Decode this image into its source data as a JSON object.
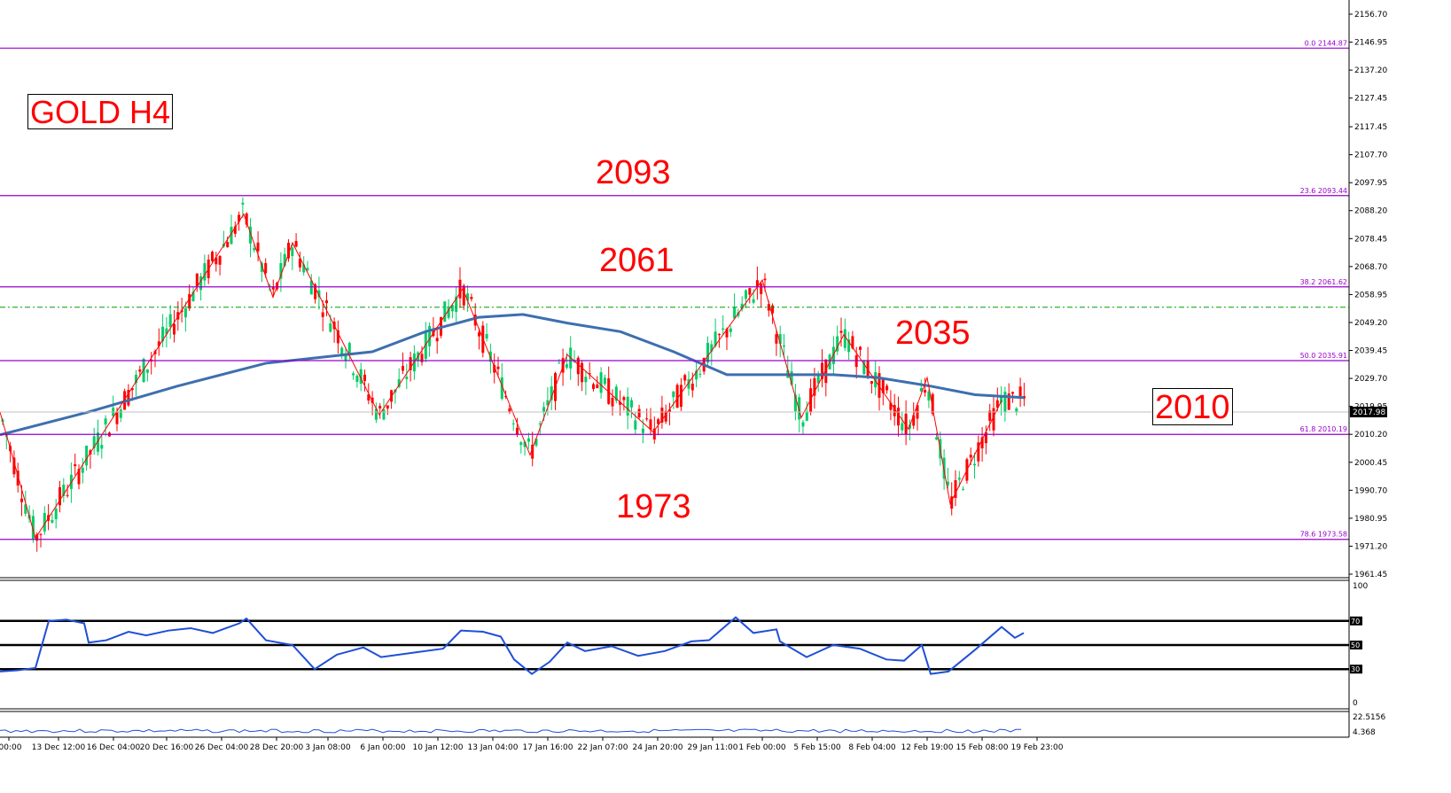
{
  "symbol_label": "GOLD H4",
  "annotations": [
    {
      "id": "2093",
      "text": "2093"
    },
    {
      "id": "2061",
      "text": "2061"
    },
    {
      "id": "2035",
      "text": "2035"
    },
    {
      "id": "2010",
      "text": "2010"
    },
    {
      "id": "1973",
      "text": "1973"
    }
  ],
  "current_price": "2017.98",
  "colors": {
    "bull": "#00cc66",
    "bear": "#ff0000",
    "ma": "#3d6fb0",
    "fib": "#9900cc",
    "annotation": "#ff0000",
    "rsi": "#1f4fd8",
    "zigzag": "#ff0000",
    "dashed_level": "#00a000",
    "price_tag_bg": "#000000"
  },
  "chart_data": {
    "type": "line",
    "title": "GOLD H4",
    "series_types": [
      "candlestick",
      "moving-average",
      "zigzag",
      "rsi",
      "volatility"
    ],
    "ylim": [
      1961.45,
      2158
    ],
    "price_axis_ticks": [
      "2156.70",
      "2146.95",
      "2137.20",
      "2127.45",
      "2117.45",
      "2107.70",
      "2097.95",
      "2088.20",
      "2078.45",
      "2068.70",
      "2058.95",
      "2049.20",
      "2039.45",
      "2029.70",
      "2019.95",
      "2010.20",
      "2000.45",
      "1990.70",
      "1980.95",
      "1971.20",
      "1961.45"
    ],
    "time_ticks": [
      ":00:00",
      "13 Dec 12:00",
      "16 Dec 04:00",
      "20 Dec 16:00",
      "26 Dec 04:00",
      "28 Dec 20:00",
      "3 Jan 08:00",
      "6 Jan 00:00",
      "10 Jan 12:00",
      "13 Jan 04:00",
      "17 Jan 16:00",
      "22 Jan 07:00",
      "24 Jan 20:00",
      "29 Jan 11:00",
      "1 Feb 00:00",
      "5 Feb 15:00",
      "8 Feb 04:00",
      "12 Feb 19:00",
      "15 Feb 08:00",
      "19 Feb 23:00"
    ],
    "fib_levels": [
      {
        "label": "0.0 2144.87",
        "price": 2144.87
      },
      {
        "label": "23.6 2093.44",
        "price": 2093.44
      },
      {
        "label": "38.2 2061.62",
        "price": 2061.62
      },
      {
        "label": "50.0 2035.91",
        "price": 2035.91
      },
      {
        "label": "61.8 2010.19",
        "price": 2010.19
      },
      {
        "label": "78.6 1973.58",
        "price": 1973.58
      }
    ],
    "dashed_level": 2054.5,
    "current_price_value": 2017.98,
    "zigzag_points": [
      [
        0,
        2018
      ],
      [
        40,
        1974
      ],
      [
        275,
        2087
      ],
      [
        308,
        2058
      ],
      [
        330,
        2077
      ],
      [
        428,
        2017
      ],
      [
        522,
        2061
      ],
      [
        598,
        2003
      ],
      [
        640,
        2038
      ],
      [
        737,
        2011
      ],
      [
        860,
        2064
      ],
      [
        904,
        2016
      ],
      [
        952,
        2045
      ],
      [
        1025,
        2012
      ],
      [
        1046,
        2030
      ],
      [
        1072,
        1986
      ],
      [
        1130,
        2022
      ]
    ],
    "ma_points": [
      [
        0,
        2010
      ],
      [
        100,
        2018
      ],
      [
        200,
        2027
      ],
      [
        300,
        2035
      ],
      [
        360,
        2037
      ],
      [
        420,
        2039
      ],
      [
        480,
        2046
      ],
      [
        540,
        2051
      ],
      [
        590,
        2052
      ],
      [
        640,
        2049
      ],
      [
        700,
        2046
      ],
      [
        760,
        2039
      ],
      [
        820,
        2031
      ],
      [
        880,
        2031
      ],
      [
        940,
        2031
      ],
      [
        990,
        2030
      ],
      [
        1050,
        2027
      ],
      [
        1100,
        2024
      ],
      [
        1155,
        2023
      ]
    ],
    "rsi": {
      "levels": [
        70,
        50,
        30
      ],
      "axis_ticks": [
        "100",
        "0"
      ],
      "points": [
        [
          0,
          28
        ],
        [
          20,
          29
        ],
        [
          40,
          31
        ],
        [
          55,
          70
        ],
        [
          75,
          71
        ],
        [
          95,
          68
        ],
        [
          100,
          52
        ],
        [
          120,
          54
        ],
        [
          145,
          61
        ],
        [
          165,
          58
        ],
        [
          190,
          62
        ],
        [
          215,
          64
        ],
        [
          240,
          60
        ],
        [
          270,
          68
        ],
        [
          278,
          72
        ],
        [
          300,
          54
        ],
        [
          330,
          50
        ],
        [
          355,
          30
        ],
        [
          380,
          42
        ],
        [
          410,
          48
        ],
        [
          430,
          40
        ],
        [
          470,
          44
        ],
        [
          500,
          47
        ],
        [
          520,
          62
        ],
        [
          545,
          61
        ],
        [
          565,
          57
        ],
        [
          580,
          38
        ],
        [
          600,
          26
        ],
        [
          620,
          36
        ],
        [
          640,
          52
        ],
        [
          660,
          45
        ],
        [
          690,
          49
        ],
        [
          720,
          41
        ],
        [
          750,
          45
        ],
        [
          780,
          53
        ],
        [
          800,
          54
        ],
        [
          830,
          73
        ],
        [
          850,
          60
        ],
        [
          876,
          63
        ],
        [
          880,
          53
        ],
        [
          910,
          40
        ],
        [
          940,
          50
        ],
        [
          970,
          47
        ],
        [
          1000,
          38
        ],
        [
          1020,
          37
        ],
        [
          1040,
          50
        ],
        [
          1050,
          26
        ],
        [
          1070,
          28
        ],
        [
          1100,
          46
        ],
        [
          1130,
          65
        ],
        [
          1145,
          56
        ],
        [
          1155,
          60
        ]
      ]
    },
    "vol_indicator": {
      "axis_ticks": [
        "22.5156",
        "4.368"
      ]
    }
  }
}
